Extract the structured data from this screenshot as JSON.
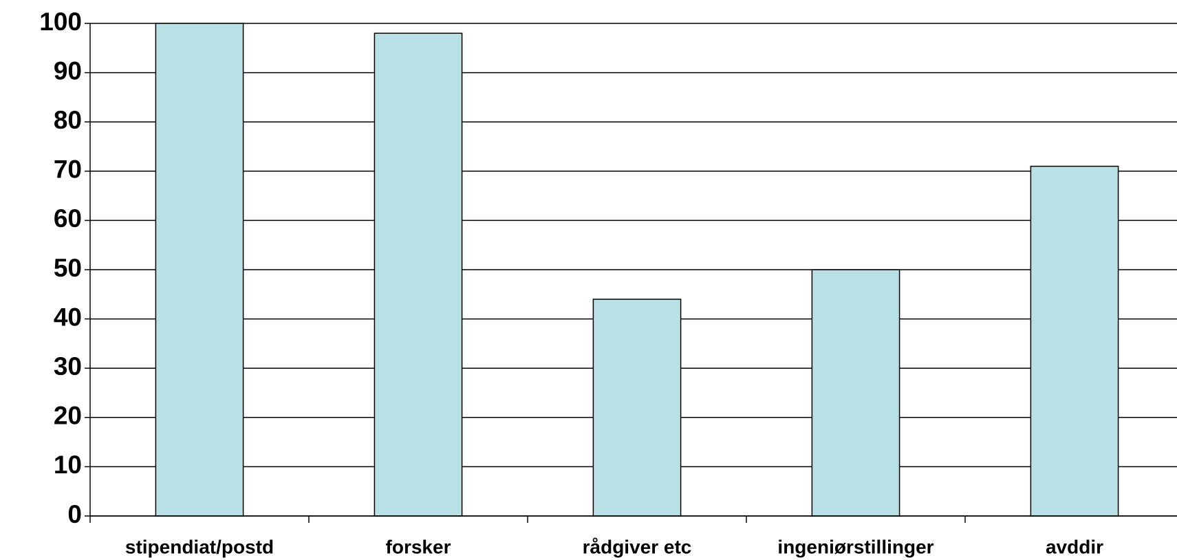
{
  "chart_data": {
    "type": "bar",
    "categories": [
      "stipendiat/postd",
      "forsker",
      "rådgiver etc",
      "ingeniørstillinger",
      "avddir"
    ],
    "values": [
      100,
      98,
      44,
      50,
      71
    ],
    "color": "#b9e0e4",
    "ylim": [
      0,
      100
    ],
    "yticks": [
      0,
      10,
      20,
      30,
      40,
      50,
      60,
      70,
      80,
      90,
      100
    ],
    "grid": true
  }
}
